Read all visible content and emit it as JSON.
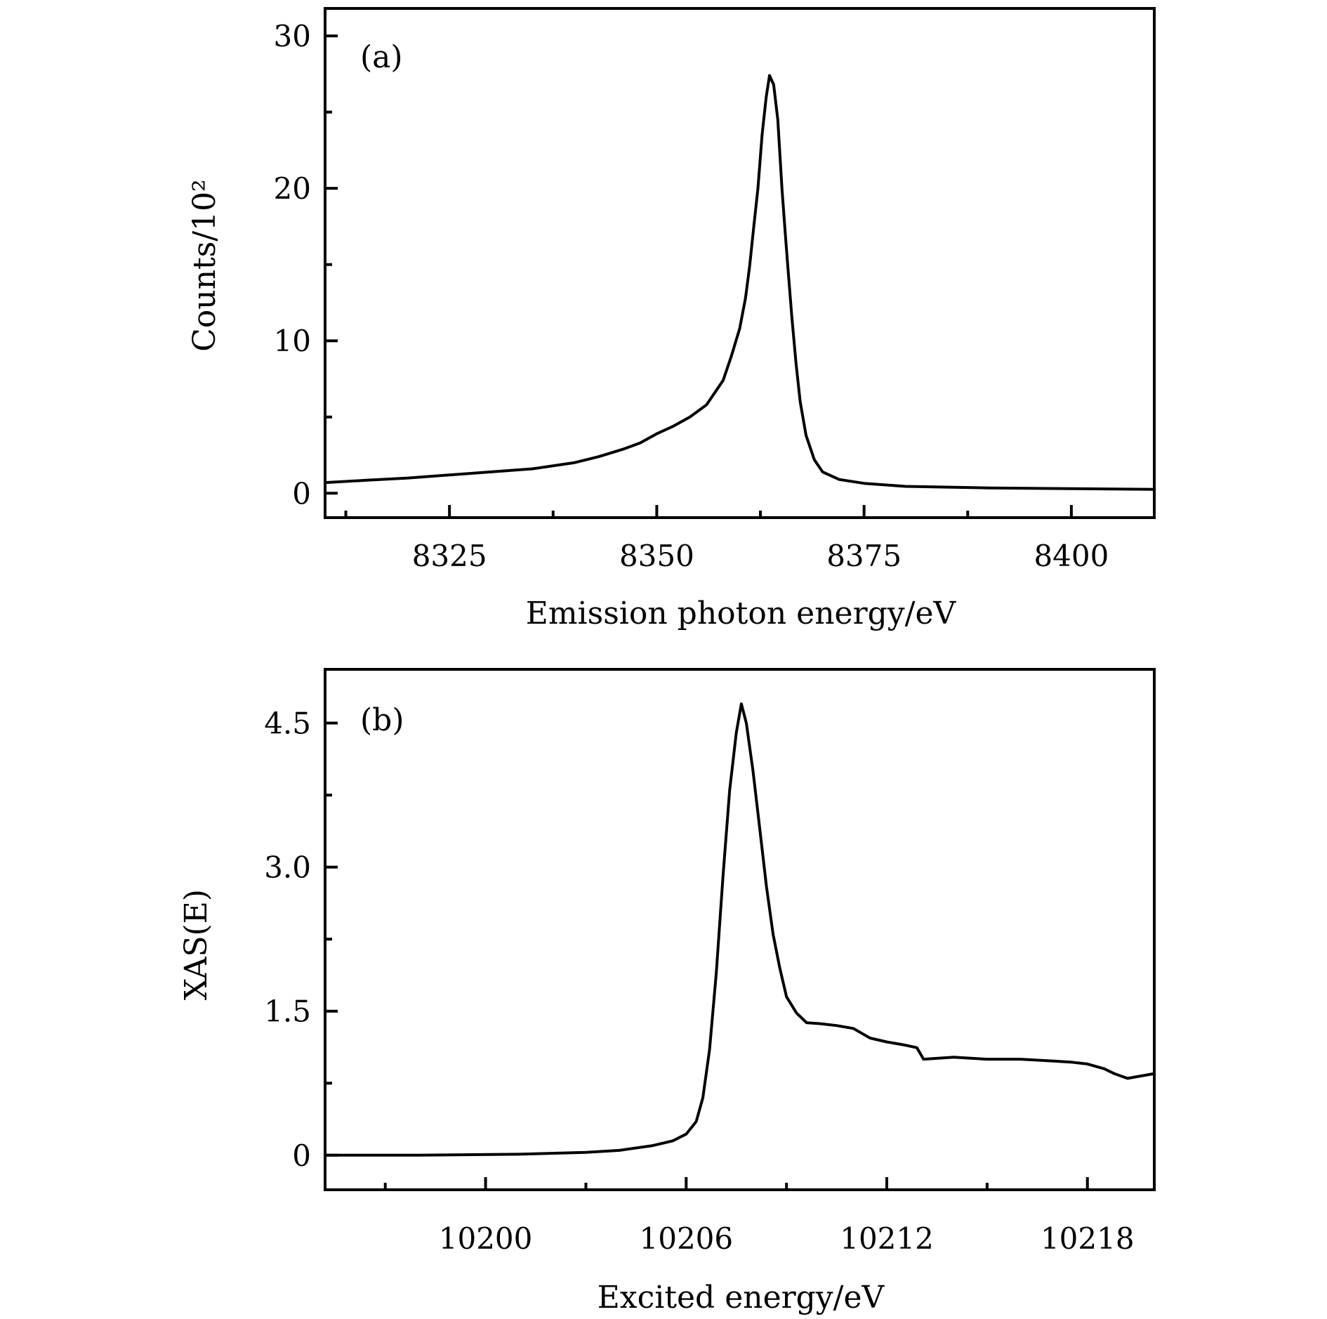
{
  "chart_data": [
    {
      "type": "line",
      "panel_label": "(a)",
      "xlabel": "Emission photon energy/eV",
      "ylabel": "Counts/10²",
      "xlim": [
        8310,
        8410
      ],
      "ylim": [
        -1.6,
        31.8
      ],
      "xticks": [
        8325,
        8350,
        8375,
        8400
      ],
      "xtick_labels": [
        "8325",
        "8350",
        "8375",
        "8400"
      ],
      "xminor": [
        8312.5,
        8337.5,
        8362.5,
        8387.5
      ],
      "yticks": [
        0,
        10,
        20,
        30
      ],
      "ytick_labels": [
        "0",
        "10",
        "20",
        "30"
      ],
      "yminor": [
        5,
        15,
        25
      ],
      "grid": false,
      "line_color": "#000000",
      "x": [
        8310,
        8315,
        8320,
        8325,
        8330,
        8335,
        8340,
        8343,
        8346,
        8348,
        8350,
        8352,
        8354,
        8356,
        8357,
        8358,
        8359,
        8360,
        8360.7,
        8361.2,
        8361.7,
        8362.2,
        8362.7,
        8363.2,
        8363.6,
        8364.1,
        8364.6,
        8365.1,
        8365.5,
        8365.8,
        8366.3,
        8366.8,
        8367.3,
        8368,
        8369,
        8370,
        8372,
        8375,
        8380,
        8390,
        8400,
        8410
      ],
      "y": [
        0.7,
        0.85,
        1.0,
        1.2,
        1.4,
        1.6,
        2.0,
        2.4,
        2.9,
        3.3,
        3.9,
        4.4,
        5.0,
        5.8,
        6.6,
        7.4,
        9.0,
        10.8,
        12.8,
        14.9,
        17.5,
        20.0,
        23.5,
        26.0,
        27.4,
        26.8,
        24.5,
        20.0,
        17.0,
        14.9,
        11.5,
        8.5,
        6.0,
        3.8,
        2.2,
        1.4,
        0.9,
        0.65,
        0.45,
        0.35,
        0.3,
        0.25
      ]
    },
    {
      "type": "line",
      "panel_label": "(b)",
      "xlabel": "Excited energy/eV",
      "ylabel": "XAS(E)",
      "xlim": [
        10195.2,
        10220
      ],
      "ylim": [
        -0.36,
        5.06
      ],
      "xticks": [
        10200,
        10206,
        10212,
        10218
      ],
      "xtick_labels": [
        "10200",
        "10206",
        "10212",
        "10218"
      ],
      "xminor": [
        10197,
        10203,
        10209,
        10215
      ],
      "yticks": [
        0,
        1.5,
        3.0,
        4.5
      ],
      "ytick_labels": [
        "0",
        "1.5",
        "3.0",
        "4.5"
      ],
      "yminor": [
        0.75,
        2.25,
        3.75
      ],
      "grid": false,
      "line_color": "#000000",
      "x": [
        10195.2,
        10198,
        10201,
        10203,
        10204,
        10205,
        10205.6,
        10206,
        10206.3,
        10206.5,
        10206.7,
        10206.9,
        10207.1,
        10207.3,
        10207.5,
        10207.65,
        10207.8,
        10208,
        10208.2,
        10208.4,
        10208.6,
        10208.8,
        10209,
        10209.3,
        10209.6,
        10210,
        10210.5,
        10211,
        10211.5,
        10212,
        10212.5,
        10212.9,
        10213.1,
        10214,
        10215,
        10216,
        10217,
        10217.5,
        10218,
        10218.5,
        10218.8,
        10219.2,
        10220
      ],
      "y": [
        0,
        0,
        0.01,
        0.03,
        0.05,
        0.1,
        0.15,
        0.22,
        0.35,
        0.6,
        1.1,
        1.9,
        2.9,
        3.8,
        4.4,
        4.7,
        4.5,
        4.0,
        3.4,
        2.8,
        2.3,
        1.95,
        1.65,
        1.48,
        1.38,
        1.37,
        1.35,
        1.32,
        1.22,
        1.18,
        1.15,
        1.12,
        1.0,
        1.02,
        1.0,
        1.0,
        0.98,
        0.97,
        0.95,
        0.9,
        0.85,
        0.8,
        0.85
      ]
    }
  ]
}
